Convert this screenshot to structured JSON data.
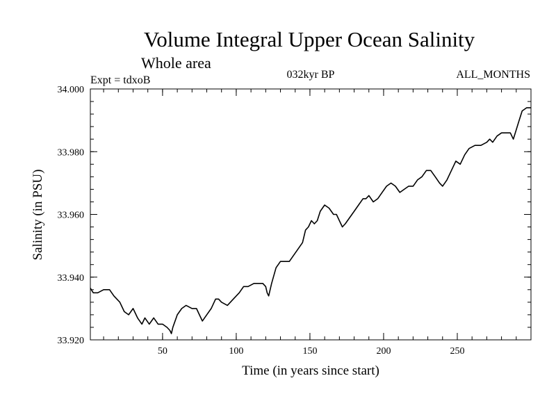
{
  "chart_data": {
    "type": "line",
    "title": "Volume Integral Upper Ocean Salinity",
    "subtitle": "Whole area",
    "experiment_label": "Expt = tdxoB",
    "period_label": "032kyr BP",
    "months_label": "ALL_MONTHS",
    "xlabel": "Time (in years since start)",
    "ylabel": "Salinity (in PSU)",
    "xlim": [
      1,
      300
    ],
    "ylim": [
      33.92,
      34.0
    ],
    "x_ticks": [
      50,
      100,
      150,
      200,
      250
    ],
    "y_ticks": [
      "33.920",
      "33.940",
      "33.960",
      "33.980",
      "34.000"
    ],
    "x_minor_step": 10,
    "y_minor_step": 0.004,
    "line_color": "#000000",
    "series": [
      {
        "x": [
          1,
          3,
          6,
          10,
          14,
          17,
          21,
          24,
          27,
          30,
          33,
          36,
          38,
          41,
          44,
          47,
          50,
          53,
          55,
          56,
          57,
          60,
          63,
          66,
          70,
          73,
          75,
          77,
          80,
          83,
          86,
          88,
          90,
          94,
          98,
          102,
          105,
          108,
          112,
          116,
          118,
          120,
          121,
          122,
          124,
          127,
          130,
          133,
          136,
          139,
          142,
          145,
          147,
          149,
          151,
          153,
          155,
          157,
          160,
          163,
          166,
          168,
          170,
          172,
          174,
          177,
          180,
          183,
          186,
          188,
          190,
          193,
          196,
          199,
          202,
          205,
          208,
          211,
          214,
          217,
          220,
          223,
          226,
          229,
          232,
          235,
          238,
          240,
          243,
          246,
          249,
          252,
          255,
          258,
          262,
          266,
          270,
          272,
          274,
          277,
          280,
          283,
          286,
          288,
          290,
          292,
          294,
          297,
          300
        ],
        "y": [
          33.9365,
          33.935,
          33.935,
          33.936,
          33.936,
          33.934,
          33.932,
          33.929,
          33.928,
          33.93,
          33.927,
          33.925,
          33.927,
          33.925,
          33.927,
          33.925,
          33.925,
          33.924,
          33.923,
          33.922,
          33.924,
          33.928,
          33.93,
          33.931,
          33.93,
          33.93,
          33.928,
          33.926,
          33.928,
          33.93,
          33.933,
          33.933,
          33.932,
          33.931,
          33.933,
          33.935,
          33.937,
          33.937,
          33.938,
          33.938,
          33.938,
          33.937,
          33.935,
          33.934,
          33.938,
          33.943,
          33.945,
          33.945,
          33.945,
          33.947,
          33.949,
          33.951,
          33.955,
          33.956,
          33.958,
          33.957,
          33.958,
          33.961,
          33.963,
          33.962,
          33.96,
          33.96,
          33.958,
          33.956,
          33.957,
          33.959,
          33.961,
          33.963,
          33.965,
          33.965,
          33.966,
          33.964,
          33.965,
          33.967,
          33.969,
          33.97,
          33.969,
          33.967,
          33.968,
          33.969,
          33.969,
          33.971,
          33.972,
          33.974,
          33.974,
          33.972,
          33.97,
          33.969,
          33.971,
          33.974,
          33.977,
          33.976,
          33.979,
          33.981,
          33.982,
          33.982,
          33.983,
          33.984,
          33.983,
          33.985,
          33.986,
          33.986,
          33.986,
          33.984,
          33.987,
          33.99,
          33.993,
          33.994,
          33.994
        ]
      }
    ]
  }
}
